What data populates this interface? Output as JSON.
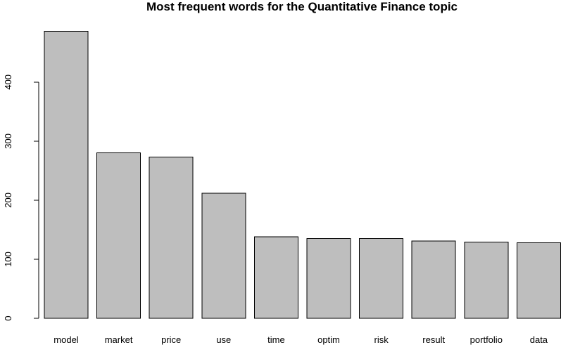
{
  "chart_data": {
    "type": "bar",
    "title": "Most frequent words for the Quantitative Finance topic",
    "xlabel": "",
    "ylabel": "",
    "categories": [
      "model",
      "market",
      "price",
      "use",
      "time",
      "optim",
      "risk",
      "result",
      "portfolio",
      "data"
    ],
    "values": [
      486,
      280,
      273,
      212,
      138,
      135,
      135,
      131,
      129,
      128
    ],
    "ylim": [
      0,
      486
    ],
    "y_ticks": [
      0,
      100,
      200,
      300,
      400
    ],
    "bar_color": "#bebebe",
    "bar_border_color": "#000000",
    "grid": false,
    "legend": "none"
  }
}
